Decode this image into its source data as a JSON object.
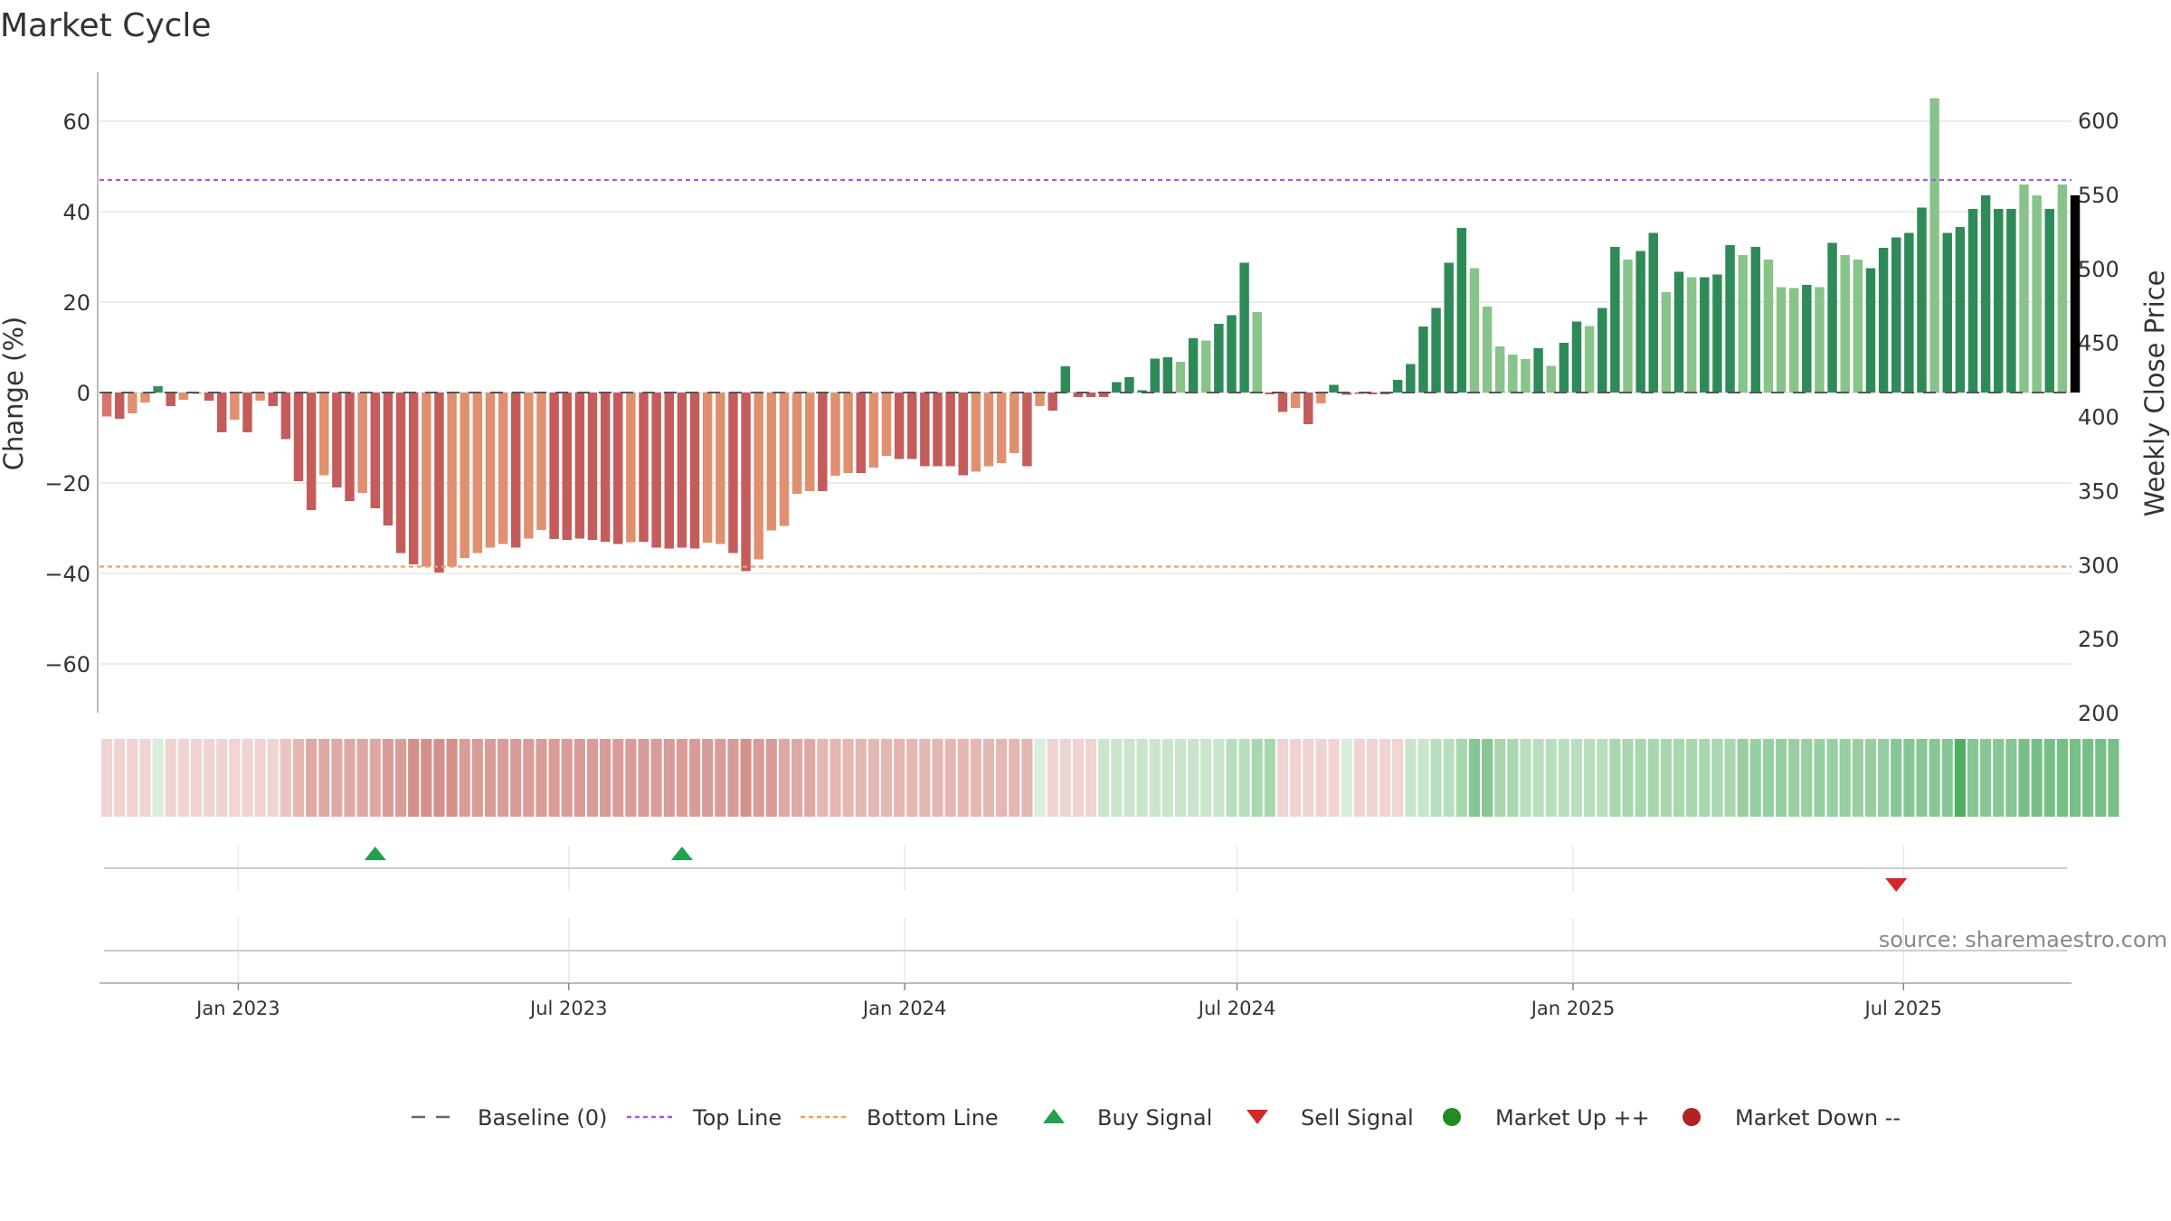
{
  "chart_data": {
    "type": "bar",
    "title": "Market Cycle",
    "ylabel_left": "Change (%)",
    "ylabel_right": "Weekly Close Price",
    "ylim_left": [
      -70,
      70
    ],
    "yticks_left": [
      60,
      40,
      20,
      0,
      -20,
      -40,
      -60
    ],
    "ytick_labels_left": [
      "60",
      "40",
      "20",
      "0",
      "−20",
      "−40",
      "−60"
    ],
    "ylim_right": [
      200,
      630
    ],
    "yticks_right": [
      600,
      550,
      500,
      450,
      400,
      350,
      300,
      250,
      200
    ],
    "ytick_labels_right": [
      "600",
      "550",
      "500",
      "450",
      "400",
      "350",
      "300",
      "250",
      "200"
    ],
    "x_range": [
      "2022-10-17",
      "2025-10-01"
    ],
    "x_ticks": [
      "2023-01-01",
      "2023-07-01",
      "2024-01-01",
      "2024-07-01",
      "2025-01-01",
      "2025-07-01"
    ],
    "x_tick_labels": [
      "Jan 2023",
      "Jul 2023",
      "Jan 2024",
      "Jul 2024",
      "Jan 2025",
      "Jul 2025"
    ],
    "first_week": "2022-10-21",
    "top_line": 47,
    "bottom_line": -38.5,
    "change_values": [
      -5.3,
      -5.8,
      -4.6,
      -2.2,
      1.4,
      -3,
      -1.6,
      0,
      -1.8,
      -8.8,
      -6,
      -8.8,
      -1.8,
      -3,
      -10.3,
      -19.6,
      -26,
      -18.3,
      -21,
      -24,
      -22.2,
      -25.6,
      -29.4,
      -35.5,
      -38,
      -38.5,
      -39.8,
      -38.5,
      -36.6,
      -35.5,
      -34.3,
      -33.5,
      -34.3,
      -32.3,
      -30.4,
      -32.4,
      -32.6,
      -32.3,
      -32.6,
      -33,
      -33.5,
      -33.1,
      -33,
      -34.3,
      -34.5,
      -34.3,
      -34.5,
      -33.2,
      -33.5,
      -35.5,
      -39.5,
      -36.9,
      -30.5,
      -29.5,
      -22.4,
      -21.8,
      -21.8,
      -18.4,
      -17.8,
      -17.8,
      -16.6,
      -14,
      -14.7,
      -14.7,
      -16.3,
      -16.3,
      -16.3,
      -18.3,
      -17.5,
      -16.3,
      -15.6,
      -13.4,
      -16.3,
      -3,
      -4,
      5.8,
      -1,
      -1,
      -1,
      2.3,
      3.4,
      0.5,
      7.5,
      7.8,
      6.8,
      12,
      11.5,
      15.2,
      17.1,
      28.7,
      17.8,
      -0.4,
      -4.3,
      -3.4,
      -7,
      -2.4,
      1.7,
      -0.5,
      0,
      -0.4,
      -0.4,
      2.8,
      6.3,
      14.6,
      18.7,
      28.7,
      36.4,
      27.5,
      19,
      10.2,
      8.4,
      7.4,
      9.8,
      5.9,
      11,
      15.7,
      14.7,
      18.7,
      32.2,
      29.4,
      31.3,
      35.3,
      22.2,
      26.7,
      25.5,
      25.5,
      26.1,
      32.6,
      30.4,
      32.2,
      29.4,
      23.3,
      23.1,
      23.8,
      23.3,
      33.1,
      30.4,
      29.4,
      27.5,
      32,
      34.3,
      35.3,
      40.9,
      65.1,
      35.3,
      36.6,
      40.6,
      43.6,
      40.6,
      40.6,
      46,
      43.6,
      40.6,
      46,
      43.6
    ],
    "bar_colors": [
      "#d9746b",
      "#c45c5c",
      "#e09070",
      "#e09070",
      "#3a8b5f",
      "#c45c5c",
      "#e09070",
      "#e09070",
      "#c45c5c",
      "#c45c5c",
      "#e09070",
      "#c45c5c",
      "#e09070",
      "#c45c5c",
      "#c45c5c",
      "#c45c5c",
      "#c45c5c",
      "#e09070",
      "#c45c5c",
      "#c45c5c",
      "#e09070",
      "#c45c5c",
      "#c45c5c",
      "#c45c5c",
      "#c45c5c",
      "#e09070",
      "#c45c5c",
      "#e09070",
      "#e09070",
      "#e09070",
      "#e09070",
      "#e09070",
      "#c45c5c",
      "#e09070",
      "#e09070",
      "#c45c5c",
      "#c45c5c",
      "#c45c5c",
      "#c45c5c",
      "#c45c5c",
      "#c45c5c",
      "#e09070",
      "#c45c5c",
      "#c45c5c",
      "#c45c5c",
      "#c45c5c",
      "#c45c5c",
      "#e09070",
      "#e09070",
      "#c45c5c",
      "#c45c5c",
      "#e09070",
      "#e09070",
      "#e09070",
      "#e09070",
      "#e09070",
      "#c45c5c",
      "#e09070",
      "#e09070",
      "#c45c5c",
      "#e09070",
      "#e09070",
      "#c45c5c",
      "#c45c5c",
      "#c45c5c",
      "#c45c5c",
      "#c45c5c",
      "#c45c5c",
      "#e09070",
      "#e09070",
      "#e09070",
      "#e09070",
      "#c45c5c",
      "#e09070",
      "#c45c5c",
      "#2e8b57",
      "#c45c5c",
      "#c45c5c",
      "#c45c5c",
      "#2e8b57",
      "#2e8b57",
      "#2e8b57",
      "#2e8b57",
      "#2e8b57",
      "#88c48a",
      "#2e8b57",
      "#88c48a",
      "#2e8b57",
      "#2e8b57",
      "#2e8b57",
      "#88c48a",
      "#c45c5c",
      "#c45c5c",
      "#e09070",
      "#c45c5c",
      "#e09070",
      "#2e8b57",
      "#c45c5c",
      "#c45c5c",
      "#c45c5c",
      "#c45c5c",
      "#2e8b57",
      "#2e8b57",
      "#2e8b57",
      "#2e8b57",
      "#2e8b57",
      "#2e8b57",
      "#88c48a",
      "#88c48a",
      "#88c48a",
      "#88c48a",
      "#88c48a",
      "#2e8b57",
      "#88c48a",
      "#2e8b57",
      "#2e8b57",
      "#88c48a",
      "#2e8b57",
      "#2e8b57",
      "#88c48a",
      "#2e8b57",
      "#2e8b57",
      "#88c48a",
      "#2e8b57",
      "#88c48a",
      "#2e8b57",
      "#2e8b57",
      "#2e8b57",
      "#88c48a",
      "#2e8b57",
      "#88c48a",
      "#88c48a",
      "#88c48a",
      "#2e8b57",
      "#88c48a",
      "#2e8b57",
      "#88c48a",
      "#88c48a",
      "#2e8b57",
      "#2e8b57",
      "#2e8b57",
      "#2e8b57",
      "#2e8b57",
      "#88c48a",
      "#2e8b57",
      "#2e8b57",
      "#2e8b57",
      "#2e8b57",
      "#2e8b57",
      "#2e8b57",
      "#88c48a",
      "#88c48a",
      "#2e8b57",
      "#88c48a"
    ],
    "heat_colors": [
      "#efd4d2",
      "#efd4d2",
      "#efd4d2",
      "#efd4d2",
      "#d9eedc",
      "#efd4d2",
      "#efd4d2",
      "#efd4d2",
      "#efd4d2",
      "#efd4d2",
      "#efd4d2",
      "#efd4d2",
      "#efd4d2",
      "#efd4d2",
      "#eac5c2",
      "#e4b7b3",
      "#dea9a5",
      "#dea9a5",
      "#dea9a5",
      "#dea9a5",
      "#dea9a5",
      "#dea9a5",
      "#d99c98",
      "#d99c98",
      "#d4908b",
      "#d4908b",
      "#d4908b",
      "#d4908b",
      "#d99c98",
      "#d99c98",
      "#d99c98",
      "#d99c98",
      "#d99c98",
      "#d99c98",
      "#d99c98",
      "#d99c98",
      "#d99c98",
      "#d99c98",
      "#d99c98",
      "#d99c98",
      "#d99c98",
      "#d99c98",
      "#d99c98",
      "#d99c98",
      "#d99c98",
      "#d99c98",
      "#d99c98",
      "#d99c98",
      "#d99c98",
      "#d99c98",
      "#d4908b",
      "#d99c98",
      "#d99c98",
      "#dea9a5",
      "#dea9a5",
      "#dea9a5",
      "#e4b7b3",
      "#e4b7b3",
      "#e4b7b3",
      "#e4b7b3",
      "#e4b7b3",
      "#e4b7b3",
      "#e4b7b3",
      "#e4b7b3",
      "#e4b7b3",
      "#e4b7b3",
      "#e4b7b3",
      "#e4b7b3",
      "#e4b7b3",
      "#e4b7b3",
      "#e4b7b3",
      "#e4b7b3",
      "#e4b7b3",
      "#d9eedc",
      "#efd4d2",
      "#efd4d2",
      "#efd4d2",
      "#efd4d2",
      "#c9e6cd",
      "#c9e6cd",
      "#c9e6cd",
      "#c9e6cd",
      "#c9e6cd",
      "#c9e6cd",
      "#c9e6cd",
      "#c9e6cd",
      "#c9e6cd",
      "#c9e6cd",
      "#b8dfbd",
      "#b8dfbd",
      "#a8d7ae",
      "#a8d7ae",
      "#efd4d2",
      "#efd4d2",
      "#efd4d2",
      "#efd4d2",
      "#efd4d2",
      "#d9eedc",
      "#efd4d2",
      "#efd4d2",
      "#efd4d2",
      "#efd4d2",
      "#c9e6cd",
      "#c9e6cd",
      "#b8dfbd",
      "#b8dfbd",
      "#a8d7ae",
      "#88c795",
      "#88c795",
      "#a8d7ae",
      "#a8d7ae",
      "#b8dfbd",
      "#b8dfbd",
      "#b8dfbd",
      "#b8dfbd",
      "#b8dfbd",
      "#b8dfbd",
      "#b8dfbd",
      "#a8d7ae",
      "#a8d7ae",
      "#a8d7ae",
      "#a8d7ae",
      "#a8d7ae",
      "#a8d7ae",
      "#a8d7ae",
      "#a8d7ae",
      "#a8d7ae",
      "#a8d7ae",
      "#98cfa2",
      "#98cfa2",
      "#98cfa2",
      "#98cfa2",
      "#98cfa2",
      "#98cfa2",
      "#98cfa2",
      "#98cfa2",
      "#98cfa2",
      "#98cfa2",
      "#98cfa2",
      "#98cfa2",
      "#88c795",
      "#88c795",
      "#88c795",
      "#88c795",
      "#88c795",
      "#50b060",
      "#88c795",
      "#88c795",
      "#88c795",
      "#88c795",
      "#78bf86",
      "#78bf86",
      "#78bf86",
      "#78bf86",
      "#78bf86",
      "#78bf86",
      "#78bf86",
      "#78bf86"
    ],
    "buy_signals": [
      "2023-03-17",
      "2023-09-01"
    ],
    "sell_signals": [
      "2025-06-27"
    ],
    "legend": [
      {
        "label": "Baseline (0)",
        "symbol": "dash",
        "color": "#666666"
      },
      {
        "label": "Top Line",
        "symbol": "dotted",
        "color": "#a855f7"
      },
      {
        "label": "Bottom Line",
        "symbol": "dotted",
        "color": "#f0a060"
      },
      {
        "label": "Buy Signal",
        "symbol": "triangle-up",
        "color": "#22a050"
      },
      {
        "label": "Sell Signal",
        "symbol": "triangle-down",
        "color": "#d62728"
      },
      {
        "label": "Market Up ++",
        "symbol": "circle",
        "color": "#228b22"
      },
      {
        "label": "Market Down --",
        "symbol": "circle",
        "color": "#b22222"
      }
    ],
    "grid": true,
    "legend_position": "bottom-center",
    "source_text": "source: sharemaestro.com"
  }
}
